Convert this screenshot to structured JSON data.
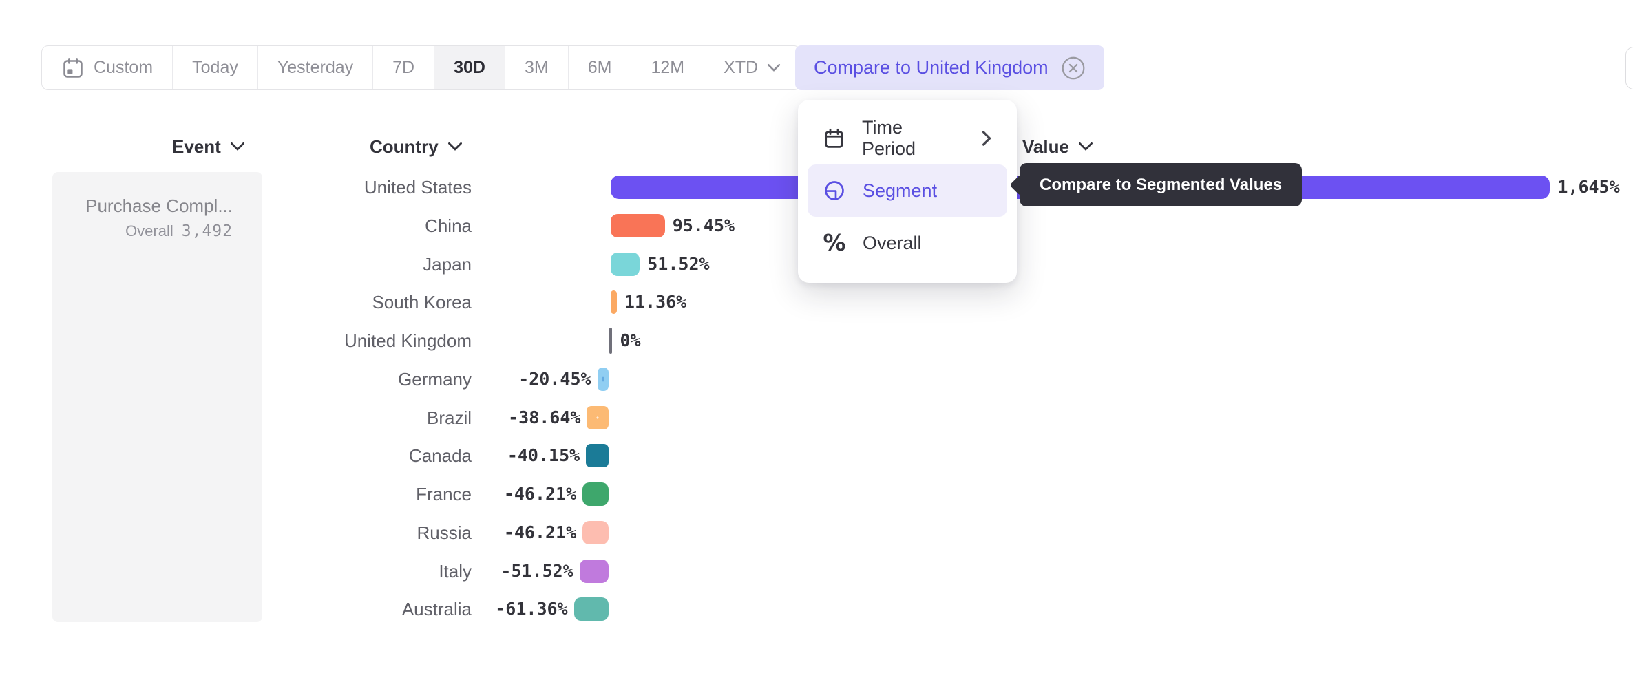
{
  "toolbar": {
    "ranges": [
      {
        "label": "Custom",
        "icon": "calendar",
        "active": false
      },
      {
        "label": "Today",
        "active": false
      },
      {
        "label": "Yesterday",
        "active": false
      },
      {
        "label": "7D",
        "active": false
      },
      {
        "label": "30D",
        "active": true
      },
      {
        "label": "3M",
        "active": false
      },
      {
        "label": "6M",
        "active": false
      },
      {
        "label": "12M",
        "active": false
      },
      {
        "label": "XTD",
        "active": false,
        "chevron": true
      }
    ],
    "compare_button": {
      "label": "Compare to United Kingdom",
      "close_icon": "circle-x-icon"
    }
  },
  "columns": {
    "event": "Event",
    "country": "Country",
    "value": "Value"
  },
  "event_panel": {
    "event_name": "Purchase Compl...",
    "overall_label": "Overall",
    "overall_value": "3,492"
  },
  "menu": {
    "items": [
      {
        "icon": "calendar-icon",
        "label": "Time Period",
        "submenu": true,
        "selected": false
      },
      {
        "icon": "segment-icon",
        "label": "Segment",
        "submenu": false,
        "selected": true
      },
      {
        "icon": "percent-icon",
        "label": "Overall",
        "submenu": false,
        "selected": false
      }
    ]
  },
  "tooltip": {
    "text": "Compare to Segmented Values"
  },
  "chart_data": {
    "type": "bar",
    "orientation": "horizontal",
    "unit": "%",
    "baseline_note": "values relative to United Kingdom (0%)",
    "categories": [
      "United States",
      "China",
      "Japan",
      "South Korea",
      "United Kingdom",
      "Germany",
      "Brazil",
      "Canada",
      "France",
      "Russia",
      "Italy",
      "Australia"
    ],
    "values": [
      1645,
      95.45,
      51.52,
      11.36,
      0,
      -20.45,
      -38.64,
      -40.15,
      -46.21,
      -46.21,
      -51.52,
      -61.36
    ],
    "labels": [
      "1,645%",
      "95.45%",
      "51.52%",
      "11.36%",
      "0%",
      "-20.45%",
      "-38.64%",
      "-40.15%",
      "-46.21%",
      "-46.21%",
      "-51.52%",
      "-61.36%"
    ],
    "colors": [
      "#6c51f2",
      "#f97457",
      "#7ad6d9",
      "#fba963",
      "#70707a",
      "#90cef2",
      "#fcba74",
      "#1b7b97",
      "#3ea76c",
      "#fdbdb0",
      "#c07add",
      "#61b9ad"
    ],
    "patterns": [
      "solid",
      "solid",
      "solid",
      "solid",
      "tick",
      "dots",
      "dots",
      "solid",
      "solid",
      "solid",
      "solid",
      "solid"
    ],
    "dot_colors": [
      "",
      "",
      "",
      "",
      "",
      "rgba(45,125,205,0.45)",
      "rgba(255,255,255,0.70)",
      "",
      "",
      "",
      "",
      ""
    ],
    "xlim": [
      -100,
      1700
    ],
    "grid": false,
    "legend": false
  },
  "ui_colors": {
    "accent_purple": "#5a4fe2",
    "compare_pill_bg": "#e4e3fa",
    "menu_highlight_bg": "#efedfb",
    "tooltip_bg": "#31313a",
    "panel_bg": "#f4f4f5",
    "toolbar_border": "#e4e4e7",
    "active_range_bg": "#f2f2f4"
  }
}
